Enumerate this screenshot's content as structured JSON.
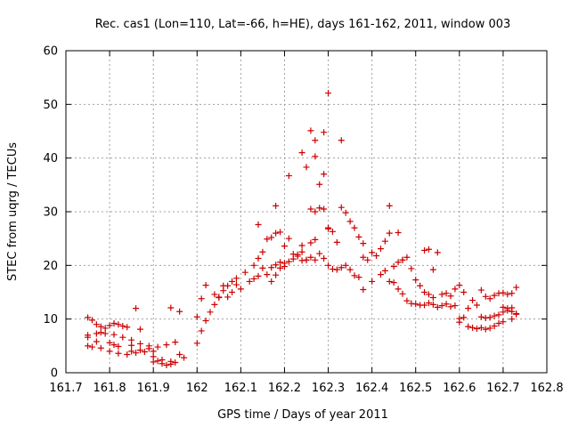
{
  "chart_data": {
    "type": "scatter",
    "title": "Rec. cas1 (Lon=110, Lat=-66, h=HE), days 161-162, 2011, window 003",
    "xlabel": "GPS time / Days of year 2011",
    "ylabel": "STEC from uqrg / TECUs",
    "xlim": [
      161.7,
      162.8
    ],
    "ylim": [
      0,
      60
    ],
    "xticks": [
      161.7,
      161.8,
      161.9,
      162.0,
      162.1,
      162.2,
      162.3,
      162.4,
      162.5,
      162.6,
      162.7,
      162.8
    ],
    "xtick_labels": [
      "161.7",
      "161.8",
      "161.9",
      "162",
      "162.1",
      "162.2",
      "162.3",
      "162.4",
      "162.5",
      "162.6",
      "162.7",
      "162.8"
    ],
    "yticks": [
      0,
      10,
      20,
      30,
      40,
      50,
      60
    ],
    "ytick_labels": [
      "0",
      "10",
      "20",
      "30",
      "40",
      "50",
      "60"
    ],
    "grid": true,
    "legend": "none",
    "marker": "+",
    "color": "#cc0000",
    "series": [
      {
        "points": [
          [
            161.75,
            10.3
          ],
          [
            161.76,
            9.8
          ],
          [
            161.77,
            9.0
          ],
          [
            161.78,
            8.6
          ],
          [
            161.79,
            8.3
          ],
          [
            161.8,
            8.8
          ],
          [
            161.81,
            9.2
          ],
          [
            161.82,
            9.0
          ],
          [
            161.83,
            8.7
          ],
          [
            161.84,
            8.5
          ],
          [
            161.75,
            7.0
          ],
          [
            161.77,
            7.3
          ],
          [
            161.78,
            7.5
          ],
          [
            161.79,
            7.3
          ],
          [
            161.81,
            7.1
          ],
          [
            161.83,
            6.6
          ],
          [
            161.85,
            6.1
          ],
          [
            161.75,
            6.6
          ],
          [
            161.77,
            5.8
          ],
          [
            161.8,
            5.6
          ],
          [
            161.81,
            5.2
          ],
          [
            161.82,
            4.9
          ],
          [
            161.85,
            5.1
          ],
          [
            161.87,
            5.4
          ],
          [
            161.75,
            5.0
          ],
          [
            161.76,
            4.8
          ],
          [
            161.78,
            4.6
          ],
          [
            161.8,
            4.0
          ],
          [
            161.82,
            3.6
          ],
          [
            161.84,
            3.4
          ],
          [
            161.86,
            3.7
          ],
          [
            161.88,
            3.9
          ],
          [
            161.9,
            4.0
          ],
          [
            161.85,
            4.0
          ],
          [
            161.87,
            4.2
          ],
          [
            161.89,
            4.5
          ],
          [
            161.91,
            4.8
          ],
          [
            161.93,
            5.2
          ],
          [
            161.95,
            5.7
          ],
          [
            161.86,
            12.0
          ],
          [
            161.87,
            8.1
          ],
          [
            161.89,
            5.0
          ],
          [
            161.9,
            3.0
          ],
          [
            161.91,
            2.2
          ],
          [
            161.92,
            1.7
          ],
          [
            161.93,
            1.4
          ],
          [
            161.94,
            1.6
          ],
          [
            161.95,
            1.9
          ],
          [
            161.97,
            2.8
          ],
          [
            161.9,
            2.0
          ],
          [
            161.92,
            2.4
          ],
          [
            161.94,
            2.1
          ],
          [
            161.96,
            3.4
          ],
          [
            161.94,
            12.1
          ],
          [
            161.96,
            11.4
          ],
          [
            162.0,
            5.5
          ],
          [
            162.01,
            7.8
          ],
          [
            162.02,
            9.7
          ],
          [
            162.03,
            11.3
          ],
          [
            162.04,
            12.7
          ],
          [
            162.05,
            14.1
          ],
          [
            162.06,
            15.3
          ],
          [
            162.07,
            16.2
          ],
          [
            162.08,
            17.0
          ],
          [
            162.09,
            17.6
          ],
          [
            162.0,
            10.4
          ],
          [
            162.01,
            13.8
          ],
          [
            162.02,
            16.3
          ],
          [
            162.04,
            14.6
          ],
          [
            162.05,
            14.0
          ],
          [
            162.06,
            16.2
          ],
          [
            162.07,
            14.1
          ],
          [
            162.08,
            15.0
          ],
          [
            162.09,
            16.4
          ],
          [
            162.1,
            15.6
          ],
          [
            162.11,
            18.7
          ],
          [
            162.12,
            17.0
          ],
          [
            162.13,
            17.5
          ],
          [
            162.14,
            18.0
          ],
          [
            162.15,
            19.5
          ],
          [
            162.16,
            18.3
          ],
          [
            162.17,
            19.6
          ],
          [
            162.18,
            20.1
          ],
          [
            162.19,
            20.6
          ],
          [
            162.2,
            19.8
          ],
          [
            162.13,
            20.0
          ],
          [
            162.14,
            21.3
          ],
          [
            162.15,
            22.5
          ],
          [
            162.16,
            24.9
          ],
          [
            162.17,
            25.2
          ],
          [
            162.18,
            26.0
          ],
          [
            162.19,
            26.2
          ],
          [
            162.14,
            27.6
          ],
          [
            162.18,
            31.1
          ],
          [
            162.2,
            23.6
          ],
          [
            162.21,
            25.0
          ],
          [
            162.22,
            22.1
          ],
          [
            162.21,
            36.7
          ],
          [
            162.23,
            21.7
          ],
          [
            162.24,
            20.9
          ],
          [
            162.25,
            21.0
          ],
          [
            162.26,
            21.5
          ],
          [
            162.27,
            21.0
          ],
          [
            162.17,
            17.0
          ],
          [
            162.18,
            18.2
          ],
          [
            162.19,
            19.5
          ],
          [
            162.2,
            20.4
          ],
          [
            162.21,
            20.7
          ],
          [
            162.22,
            21.2
          ],
          [
            162.23,
            22.0
          ],
          [
            162.24,
            22.5
          ],
          [
            162.24,
            41.0
          ],
          [
            162.25,
            38.3
          ],
          [
            162.26,
            45.1
          ],
          [
            162.27,
            43.3
          ],
          [
            162.27,
            40.3
          ],
          [
            162.26,
            30.5
          ],
          [
            162.27,
            30.0
          ],
          [
            162.28,
            35.1
          ],
          [
            162.29,
            44.8
          ],
          [
            162.29,
            37.0
          ],
          [
            162.3,
            52.1
          ],
          [
            162.3,
            27.0
          ],
          [
            162.29,
            30.5
          ],
          [
            162.28,
            30.7
          ],
          [
            162.27,
            24.8
          ],
          [
            162.26,
            24.2
          ],
          [
            162.25,
            21.0
          ],
          [
            162.24,
            23.7
          ],
          [
            162.3,
            26.8
          ],
          [
            162.31,
            26.3
          ],
          [
            162.32,
            24.3
          ],
          [
            162.33,
            43.3
          ],
          [
            162.33,
            30.8
          ],
          [
            162.34,
            29.8
          ],
          [
            162.35,
            28.2
          ],
          [
            162.36,
            27.0
          ],
          [
            162.37,
            25.3
          ],
          [
            162.38,
            24.1
          ],
          [
            162.28,
            22.2
          ],
          [
            162.29,
            21.3
          ],
          [
            162.3,
            20.0
          ],
          [
            162.31,
            19.3
          ],
          [
            162.32,
            19.2
          ],
          [
            162.33,
            19.6
          ],
          [
            162.34,
            20.0
          ],
          [
            162.35,
            19.2
          ],
          [
            162.36,
            18.1
          ],
          [
            162.37,
            17.8
          ],
          [
            162.38,
            21.5
          ],
          [
            162.39,
            21.0
          ],
          [
            162.4,
            22.4
          ],
          [
            162.41,
            21.8
          ],
          [
            162.42,
            23.1
          ],
          [
            162.43,
            24.5
          ],
          [
            162.44,
            26.0
          ],
          [
            162.44,
            31.1
          ],
          [
            162.46,
            26.1
          ],
          [
            162.47,
            21.0
          ],
          [
            162.38,
            15.5
          ],
          [
            162.4,
            17.0
          ],
          [
            162.42,
            18.3
          ],
          [
            162.43,
            19.0
          ],
          [
            162.44,
            17.0
          ],
          [
            162.45,
            16.8
          ],
          [
            162.46,
            15.6
          ],
          [
            162.47,
            14.7
          ],
          [
            162.48,
            13.4
          ],
          [
            162.49,
            12.9
          ],
          [
            162.45,
            19.8
          ],
          [
            162.46,
            20.6
          ],
          [
            162.47,
            21.0
          ],
          [
            162.48,
            21.5
          ],
          [
            162.49,
            19.4
          ],
          [
            162.5,
            17.3
          ],
          [
            162.51,
            16.2
          ],
          [
            162.52,
            15.0
          ],
          [
            162.53,
            14.6
          ],
          [
            162.54,
            14.0
          ],
          [
            162.5,
            12.8
          ],
          [
            162.51,
            12.6
          ],
          [
            162.52,
            12.6
          ],
          [
            162.53,
            13.0
          ],
          [
            162.54,
            12.7
          ],
          [
            162.55,
            12.2
          ],
          [
            162.56,
            12.5
          ],
          [
            162.57,
            12.8
          ],
          [
            162.58,
            12.3
          ],
          [
            162.59,
            12.5
          ],
          [
            162.52,
            22.8
          ],
          [
            162.53,
            23.0
          ],
          [
            162.54,
            19.2
          ],
          [
            162.55,
            22.4
          ],
          [
            162.56,
            14.6
          ],
          [
            162.57,
            14.8
          ],
          [
            162.58,
            14.3
          ],
          [
            162.59,
            15.6
          ],
          [
            162.6,
            16.3
          ],
          [
            162.61,
            15.0
          ],
          [
            162.6,
            10.1
          ],
          [
            162.61,
            10.3
          ],
          [
            162.62,
            12.0
          ],
          [
            162.63,
            13.5
          ],
          [
            162.64,
            12.6
          ],
          [
            162.65,
            15.4
          ],
          [
            162.66,
            14.2
          ],
          [
            162.67,
            13.8
          ],
          [
            162.68,
            14.4
          ],
          [
            162.69,
            14.8
          ],
          [
            162.6,
            9.4
          ],
          [
            162.62,
            8.6
          ],
          [
            162.63,
            8.4
          ],
          [
            162.64,
            8.2
          ],
          [
            162.65,
            8.4
          ],
          [
            162.66,
            8.1
          ],
          [
            162.67,
            8.3
          ],
          [
            162.68,
            8.7
          ],
          [
            162.69,
            9.2
          ],
          [
            162.7,
            9.5
          ],
          [
            162.65,
            10.4
          ],
          [
            162.66,
            10.2
          ],
          [
            162.67,
            10.3
          ],
          [
            162.68,
            10.6
          ],
          [
            162.69,
            10.8
          ],
          [
            162.7,
            11.3
          ],
          [
            162.71,
            11.6
          ],
          [
            162.72,
            11.4
          ],
          [
            162.73,
            11.0
          ],
          [
            162.73,
            10.9
          ],
          [
            162.7,
            12.2
          ],
          [
            162.71,
            12.0
          ],
          [
            162.72,
            12.1
          ],
          [
            162.7,
            14.9
          ],
          [
            162.71,
            14.6
          ],
          [
            162.72,
            14.8
          ],
          [
            162.73,
            15.9
          ],
          [
            162.72,
            10.0
          ]
        ]
      }
    ]
  }
}
